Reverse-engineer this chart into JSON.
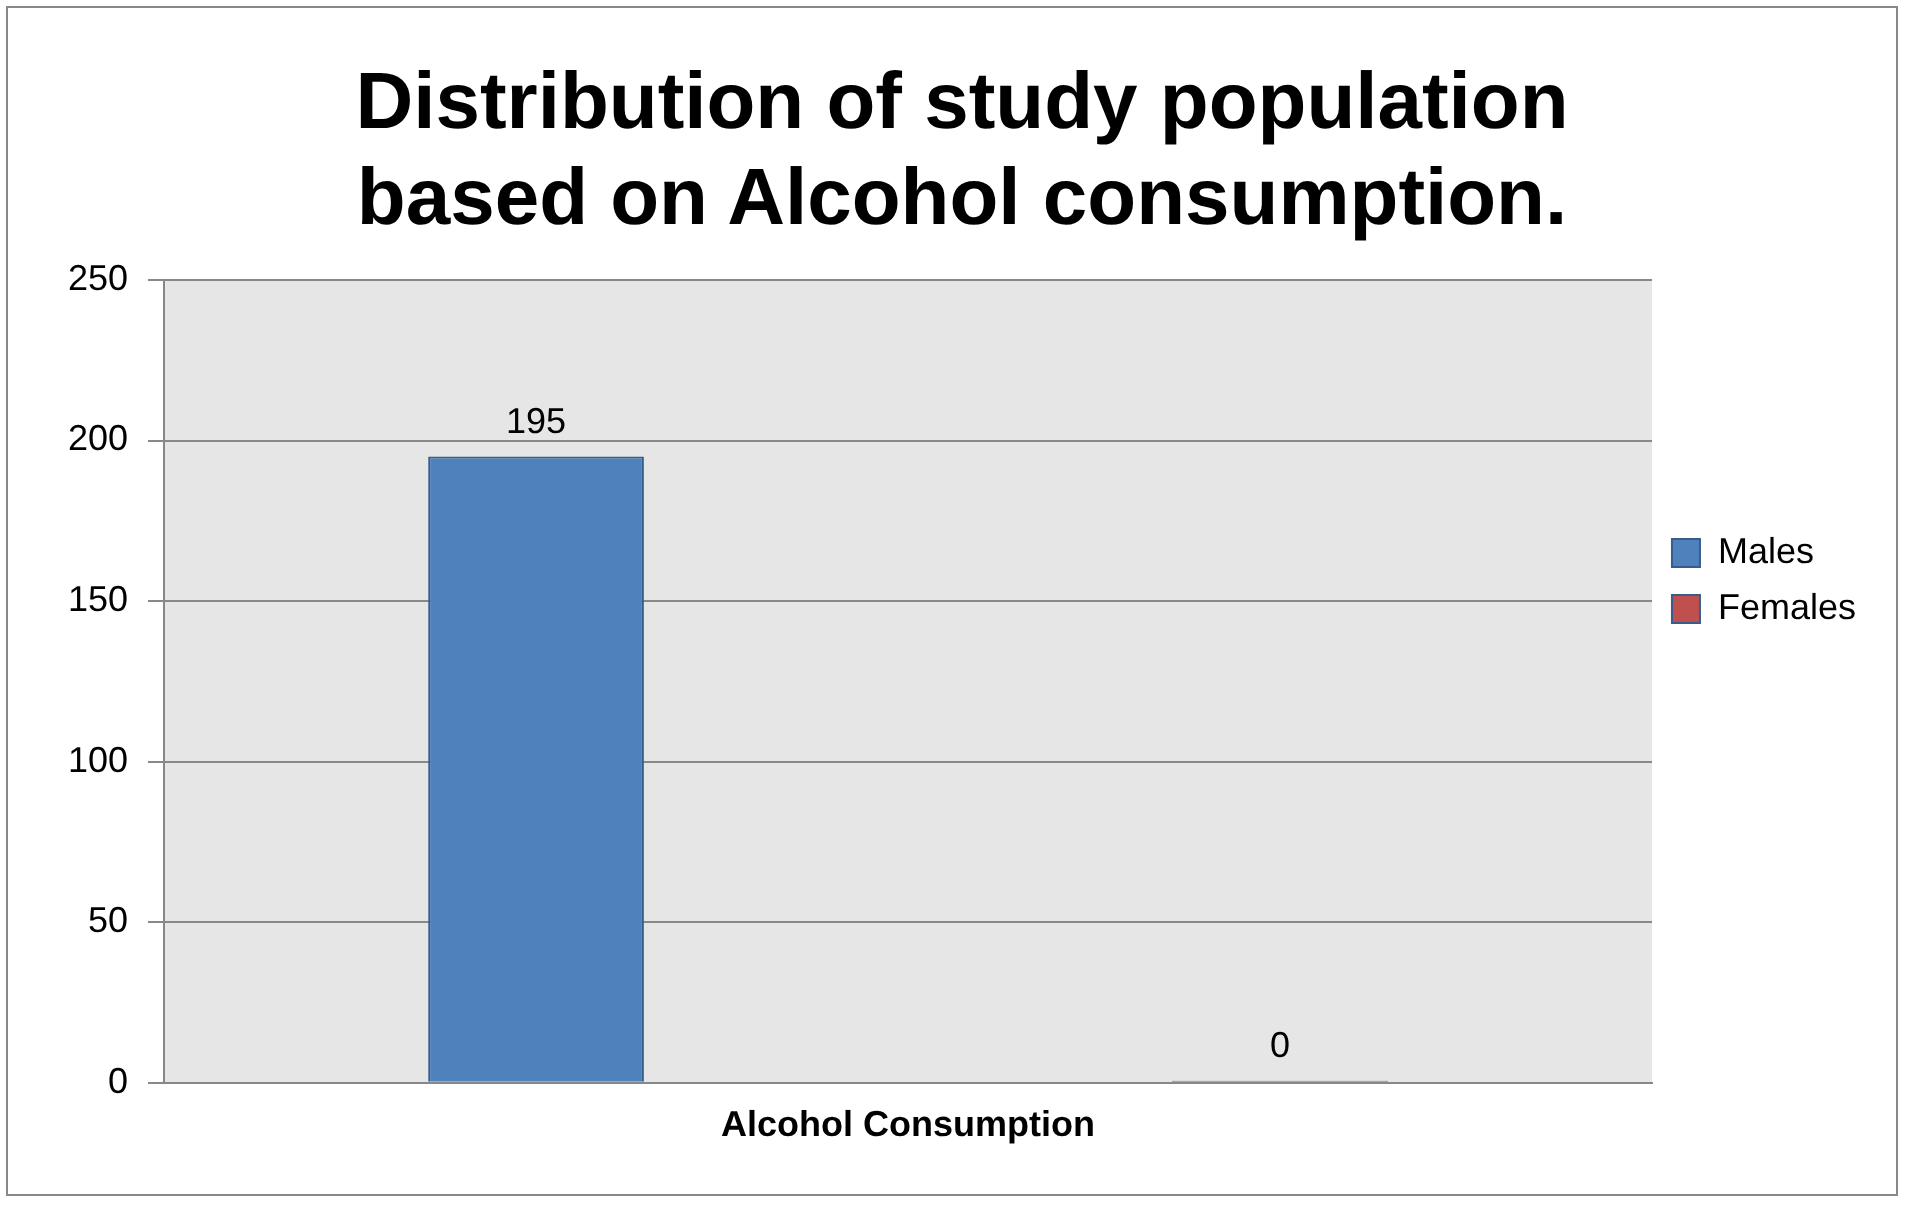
{
  "chart_data": {
    "type": "bar",
    "title": "Distribution of study population based on Alcohol consumption.",
    "categories": [
      "Alcohol Consumption"
    ],
    "series": [
      {
        "name": "Males",
        "color": "#4f81bd",
        "values": [
          195
        ]
      },
      {
        "name": "Females",
        "color": "#c0504d",
        "values": [
          0
        ]
      }
    ],
    "ylim": [
      0,
      250
    ],
    "yticks": [
      0,
      50,
      100,
      150,
      200,
      250
    ],
    "grid": "y",
    "legend": "right",
    "data_labels": true
  }
}
